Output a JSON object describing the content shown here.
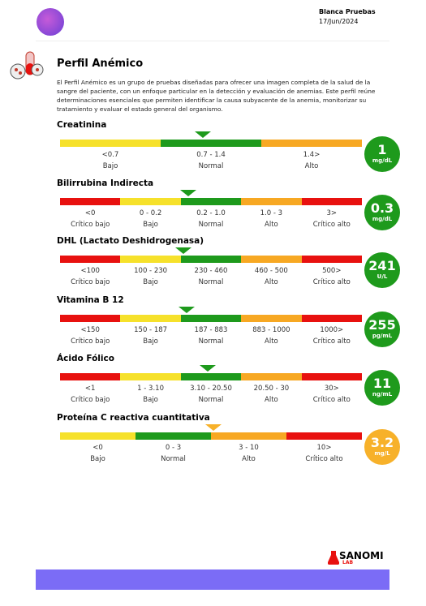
{
  "header": {
    "name": "Blanca Pruebas",
    "date": "17/Jun/2024"
  },
  "title": "Perfil Anémico",
  "description": "El Perfil Anémico es un grupo de pruebas diseñadas para ofrecer una imagen completa de la salud de la sangre del paciente, con un enfoque particular en la detección y evaluación de anemias. Este perfil reúne determinaciones esenciales que permiten identificar la causa subyacente de la anemia, monitorizar su tratamiento y evaluar el estado general del organismo.",
  "tests": [
    {
      "name": "Creatinina",
      "result": "1",
      "unit": "mg/dL",
      "result_color": "#1e9a1c",
      "segments": [
        {
          "range": "<0.7",
          "label": "Bajo",
          "color": "#f6e12b"
        },
        {
          "range": "0.7 - 1.4",
          "label": "Normal",
          "color": "#1e9a1c"
        },
        {
          "range": "1.4>",
          "label": "Alto",
          "color": "#f7a823"
        }
      ]
    },
    {
      "name": "Bilirrubina Indirecta",
      "result": "0.3",
      "unit": "mg/dL",
      "result_color": "#1e9a1c",
      "segments": [
        {
          "range": "<0",
          "label": "Crítico bajo",
          "color": "#e8110f"
        },
        {
          "range": "0 - 0.2",
          "label": "Bajo",
          "color": "#f6e12b"
        },
        {
          "range": "0.2 - 1.0",
          "label": "Normal",
          "color": "#1e9a1c"
        },
        {
          "range": "1.0 - 3",
          "label": "Alto",
          "color": "#f7a823"
        },
        {
          "range": "3>",
          "label": "Crítico alto",
          "color": "#e8110f"
        }
      ]
    },
    {
      "name": "DHL (Lactato Deshidrogenasa)",
      "result": "241",
      "unit": "U/L",
      "result_color": "#1e9a1c",
      "segments": [
        {
          "range": "<100",
          "label": "Crítico bajo",
          "color": "#e8110f"
        },
        {
          "range": "100 - 230",
          "label": "Bajo",
          "color": "#f6e12b"
        },
        {
          "range": "230 - 460",
          "label": "Normal",
          "color": "#1e9a1c"
        },
        {
          "range": "460 - 500",
          "label": "Alto",
          "color": "#f7a823"
        },
        {
          "range": "500>",
          "label": "Crítico alto",
          "color": "#e8110f"
        }
      ]
    },
    {
      "name": "Vitamina B 12",
      "result": "255",
      "unit": "pg/mL",
      "result_color": "#1e9a1c",
      "segments": [
        {
          "range": "<150",
          "label": "Crítico bajo",
          "color": "#e8110f"
        },
        {
          "range": "150 - 187",
          "label": "Bajo",
          "color": "#f6e12b"
        },
        {
          "range": "187 - 883",
          "label": "Normal",
          "color": "#1e9a1c"
        },
        {
          "range": "883 - 1000",
          "label": "Alto",
          "color": "#f7a823"
        },
        {
          "range": "1000>",
          "label": "Crítico alto",
          "color": "#e8110f"
        }
      ]
    },
    {
      "name": "Ácido Fólico",
      "result": "11",
      "unit": "ng/mL",
      "result_color": "#1e9a1c",
      "segments": [
        {
          "range": "<1",
          "label": "Crítico bajo",
          "color": "#e8110f"
        },
        {
          "range": "1 - 3.10",
          "label": "Bajo",
          "color": "#f6e12b"
        },
        {
          "range": "3.10 - 20.50",
          "label": "Normal",
          "color": "#1e9a1c"
        },
        {
          "range": "20.50 - 30",
          "label": "Alto",
          "color": "#f7a823"
        },
        {
          "range": "30>",
          "label": "Crítico alto",
          "color": "#e8110f"
        }
      ]
    },
    {
      "name": "Proteína C reactiva cuantitativa",
      "result": "3.2",
      "unit": "mg/L",
      "result_color": "#f7b12a",
      "segments": [
        {
          "range": "<0",
          "label": "Bajo",
          "color": "#f6e12b"
        },
        {
          "range": "0 - 3",
          "label": "Normal",
          "color": "#1e9a1c"
        },
        {
          "range": "3 - 10",
          "label": "Alto",
          "color": "#f7a823"
        },
        {
          "range": "10>",
          "label": "Crítico alto",
          "color": "#e8110f"
        }
      ]
    }
  ],
  "footer": {
    "brand": "SANOMI",
    "brand_sub": "LAB"
  }
}
